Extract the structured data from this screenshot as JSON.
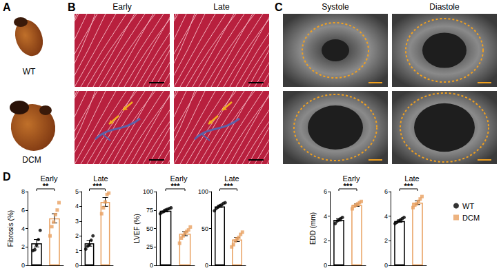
{
  "panels": {
    "A": {
      "label": "A",
      "images": [
        "WT",
        "DCM"
      ]
    },
    "B": {
      "label": "B",
      "columns": [
        "Early",
        "Late"
      ]
    },
    "C": {
      "label": "C",
      "columns": [
        "Systole",
        "Diastole"
      ]
    },
    "D": {
      "label": "D"
    }
  },
  "legend_entries": [
    {
      "name": "WT",
      "color": "#000000",
      "marker": "circle"
    },
    {
      "name": "DCM",
      "color": "#e8a060",
      "marker": "square"
    }
  ],
  "chart_data": [
    {
      "type": "bar",
      "title": "Early",
      "ylabel": "Fibrosis (%)",
      "categories": [
        null,
        null
      ],
      "values": [
        2.4,
        5.1
      ],
      "errors": [
        0.4,
        0.5
      ],
      "points": [
        [
          1.6,
          1.7,
          2.2,
          2.8,
          3.8
        ],
        [
          3.2,
          4.2,
          4.7,
          5.5,
          6.0,
          6.8
        ]
      ],
      "colors": [
        "#000000",
        "#e8a060"
      ],
      "ylim": [
        0,
        8
      ],
      "yticks": [
        0,
        2,
        4,
        6,
        8
      ],
      "grid": false,
      "annotation": "**"
    },
    {
      "type": "bar",
      "title": "Late",
      "categories": [
        null,
        null
      ],
      "values": [
        1.5,
        4.3
      ],
      "errors": [
        0.2,
        0.3
      ],
      "points": [
        [
          1.1,
          1.3,
          1.4,
          1.7,
          2.0
        ],
        [
          3.5,
          3.9,
          4.3,
          4.8,
          4.9
        ]
      ],
      "colors": [
        "#000000",
        "#e8a060"
      ],
      "ylim": [
        0,
        5
      ],
      "yticks": [
        0,
        1,
        2,
        3,
        4,
        5
      ],
      "grid": false,
      "annotation": "***"
    },
    {
      "type": "bar",
      "title": "Early",
      "ylabel": "LVEF (%)",
      "categories": [
        null,
        null
      ],
      "values": [
        74,
        43
      ],
      "errors": [
        1.5,
        2.8
      ],
      "points": [
        [
          70,
          72,
          73,
          75,
          76,
          77,
          78
        ],
        [
          30,
          37,
          40,
          44,
          46,
          48,
          52
        ]
      ],
      "colors": [
        "#000000",
        "#e8a060"
      ],
      "ylim": [
        0,
        100
      ],
      "yticks": [
        0,
        25,
        50,
        75,
        100
      ],
      "grid": false,
      "annotation": "***"
    },
    {
      "type": "bar",
      "title": "Late",
      "categories": [
        null,
        null
      ],
      "values": [
        80,
        35
      ],
      "errors": [
        1.5,
        2.8
      ],
      "points": [
        [
          74,
          77,
          79,
          81,
          82,
          84,
          85
        ],
        [
          25,
          28,
          33,
          36,
          38,
          42,
          45
        ]
      ],
      "colors": [
        "#000000",
        "#e8a060"
      ],
      "ylim": [
        0,
        100
      ],
      "yticks": [
        0,
        50,
        100
      ],
      "grid": false,
      "annotation": "***"
    },
    {
      "type": "bar",
      "title": "Early",
      "ylabel": "EDD (mm)",
      "categories": [
        null,
        null
      ],
      "values": [
        3.7,
        4.9
      ],
      "errors": [
        0.1,
        0.1
      ],
      "points": [
        [
          3.4,
          3.6,
          3.7,
          3.8,
          3.9
        ],
        [
          4.6,
          4.8,
          4.9,
          5.0,
          5.1,
          5.2
        ]
      ],
      "colors": [
        "#000000",
        "#e8a060"
      ],
      "ylim": [
        0,
        6
      ],
      "yticks": [
        0,
        2,
        4,
        6
      ],
      "grid": false,
      "annotation": "***"
    },
    {
      "type": "bar",
      "title": "Late",
      "categories": [
        null,
        null
      ],
      "values": [
        3.6,
        5.1
      ],
      "errors": [
        0.1,
        0.15
      ],
      "points": [
        [
          3.4,
          3.5,
          3.6,
          3.7,
          3.8,
          3.9
        ],
        [
          4.7,
          4.9,
          5.0,
          5.2,
          5.4,
          5.6
        ]
      ],
      "colors": [
        "#000000",
        "#e8a060"
      ],
      "ylim": [
        0,
        6
      ],
      "yticks": [
        0,
        2,
        4,
        6
      ],
      "grid": false,
      "annotation": "***"
    }
  ]
}
